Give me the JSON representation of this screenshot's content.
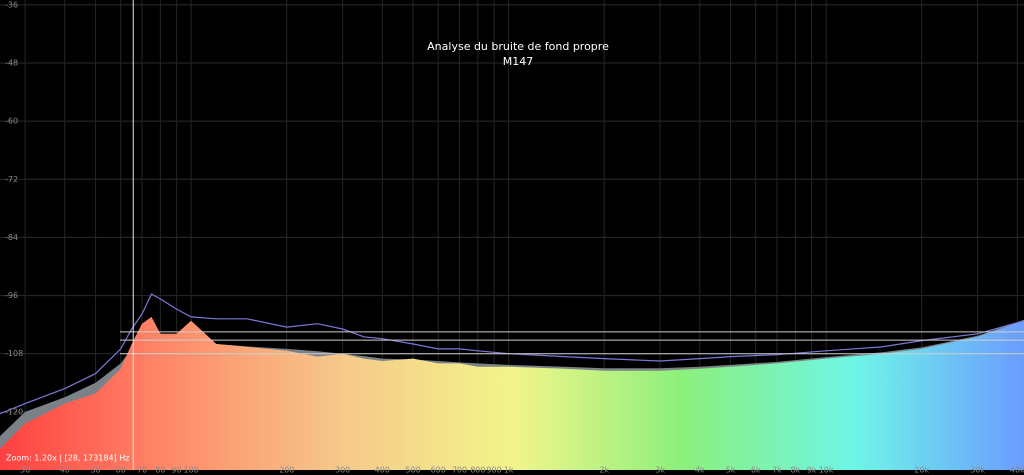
{
  "chart_data": {
    "type": "area",
    "title": "Analyse du bruite de fond propre",
    "subtitle": "M147",
    "footer": "Zoom: 1.20x | [28, 173184] Hz",
    "log_x": true,
    "grid": true,
    "background": "#000000",
    "xlim": [
      25,
      42000
    ],
    "ylim": [
      -132,
      -35
    ],
    "yticks": [
      -36,
      -48,
      -60,
      -72,
      -84,
      -96,
      -108,
      -120
    ],
    "xticks": [
      30,
      40,
      50,
      60,
      70,
      80,
      90,
      100,
      200,
      300,
      400,
      500,
      600,
      700,
      800,
      900,
      {
        "value": 1000,
        "label": "1k"
      },
      {
        "value": 2000,
        "label": "2k"
      },
      {
        "value": 3000,
        "label": "3k"
      },
      {
        "value": 4000,
        "label": "4k"
      },
      {
        "value": 5000,
        "label": "5k"
      },
      {
        "value": 6000,
        "label": "6k"
      },
      {
        "value": 7000,
        "label": "7k"
      },
      {
        "value": 8000,
        "label": "8k"
      },
      {
        "value": 9000,
        "label": "9k"
      },
      {
        "value": 10000,
        "label": "10k"
      },
      {
        "value": 20000,
        "label": "20k"
      },
      {
        "value": 30000,
        "label": "30k"
      },
      {
        "value": 40000,
        "label": "40k"
      }
    ],
    "reference_lines": [
      -103.5,
      -105.2,
      -108
    ],
    "cursor_x": 65.7,
    "x": [
      25,
      30,
      40,
      50,
      60,
      65,
      70,
      75,
      80,
      90,
      100,
      120,
      150,
      200,
      250,
      300,
      350,
      400,
      500,
      600,
      700,
      800,
      1000,
      1500,
      2000,
      3000,
      4000,
      5000,
      7000,
      10000,
      15000,
      20000,
      30000,
      42000
    ],
    "series": [
      {
        "color": "#7b8287",
        "kind": "area",
        "values": [
          -125,
          -120,
          -117,
          -114,
          -110,
          -107,
          -105,
          -104,
          -105,
          -105,
          -105.5,
          -106,
          -106.5,
          -107,
          -107.5,
          -108,
          -108.5,
          -109,
          -109.2,
          -109.5,
          -109.8,
          -110,
          -110.3,
          -110.7,
          -111,
          -111,
          -110.7,
          -110.3,
          -109.7,
          -108.7,
          -107.7,
          -106.7,
          -104.3,
          -101
        ]
      },
      {
        "gradient": [
          "#ff4040",
          "#ff8a6a",
          "#f5c98a",
          "#f3f58a",
          "#8cf07c",
          "#6ef6e6",
          "#6c9cff"
        ],
        "kind": "area",
        "values": [
          -127.6,
          -122.4,
          -118.3,
          -116.2,
          -111.1,
          -106,
          -101.8,
          -100.4,
          -103.9,
          -103.9,
          -101.2,
          -106,
          -106.6,
          -107.4,
          -108.6,
          -108,
          -109,
          -109.5,
          -109,
          -110,
          -110,
          -110.7,
          -110.7,
          -111.1,
          -111.5,
          -111.5,
          -111.1,
          -110.7,
          -110,
          -109,
          -108,
          -107,
          -104.5,
          -101.2
        ]
      },
      {
        "color": "#7a78d8",
        "kind": "line",
        "values": [
          -120.4,
          -118.3,
          -115.2,
          -112.1,
          -107,
          -102.9,
          -99.8,
          -95.7,
          -96.7,
          -98.8,
          -100.4,
          -100.8,
          -100.8,
          -102.5,
          -101.8,
          -102.9,
          -104.5,
          -104.9,
          -106,
          -107,
          -107,
          -107.4,
          -108,
          -108.6,
          -109,
          -109.5,
          -109,
          -108.6,
          -108.2,
          -107.4,
          -106.6,
          -105.3,
          -103.9,
          -101.2
        ]
      }
    ]
  }
}
